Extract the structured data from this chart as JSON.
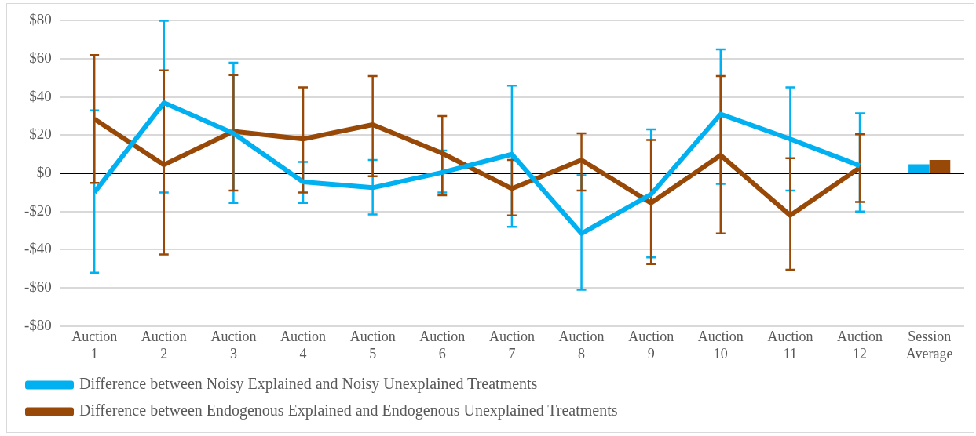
{
  "chart_data": {
    "type": "line",
    "categories": [
      "Auction 1",
      "Auction 2",
      "Auction 3",
      "Auction 4",
      "Auction 5",
      "Auction 6",
      "Auction 7",
      "Auction 8",
      "Auction 9",
      "Auction 10",
      "Auction 11",
      "Auction 12",
      "Session Average"
    ],
    "series": [
      {
        "name": "Difference between Noisy Explained and Noisy Unexplained Treatments",
        "color": "#00b0f0",
        "values": [
          -10,
          37,
          21,
          -4.5,
          -7.5,
          0.5,
          10,
          -31.5,
          -11,
          31,
          18,
          4,
          null
        ],
        "errors": [
          [
            -52,
            33
          ],
          [
            -10,
            80
          ],
          [
            -15.5,
            58
          ],
          [
            -15.5,
            6
          ],
          [
            -21.5,
            7
          ],
          [
            -10,
            12
          ],
          [
            -28,
            46
          ],
          [
            -61,
            -1
          ],
          [
            -44,
            23
          ],
          [
            -5.5,
            65
          ],
          [
            -9,
            45
          ],
          [
            -20,
            31.5
          ],
          null
        ]
      },
      {
        "name": "Difference between Endogenous Explained and Endogenous Unexplained Treatments",
        "color": "#984807",
        "values": [
          28.5,
          4.5,
          22,
          18,
          25.5,
          10.5,
          -8,
          7,
          -15.5,
          9.5,
          -22,
          3,
          null
        ],
        "errors": [
          [
            -5,
            62
          ],
          [
            -42.5,
            54
          ],
          [
            -9,
            51.5
          ],
          [
            -10,
            45
          ],
          [
            -1.5,
            51
          ],
          [
            -11.5,
            30
          ],
          [
            -22,
            7
          ],
          [
            -9,
            21
          ],
          [
            -47.5,
            17.5
          ],
          [
            -31.5,
            51
          ],
          [
            -50.5,
            8
          ],
          [
            -15,
            20.5
          ],
          null
        ]
      },
      {
        "type": "bar",
        "color": "#00b0f0",
        "values": [
          null,
          null,
          null,
          null,
          null,
          null,
          null,
          null,
          null,
          null,
          null,
          null,
          4.8
        ]
      },
      {
        "type": "bar",
        "color": "#984807",
        "values": [
          null,
          null,
          null,
          null,
          null,
          null,
          null,
          null,
          null,
          null,
          null,
          null,
          7
        ]
      }
    ],
    "ylim": [
      -80,
      80
    ],
    "yticks": [
      {
        "value": -80,
        "label": "-$80"
      },
      {
        "value": -60,
        "label": "-$60"
      },
      {
        "value": -40,
        "label": "-$40"
      },
      {
        "value": -20,
        "label": "-$20"
      },
      {
        "value": 0,
        "label": "$0"
      },
      {
        "value": 20,
        "label": "$20"
      },
      {
        "value": 40,
        "label": "$40"
      },
      {
        "value": 60,
        "label": "$60"
      },
      {
        "value": 80,
        "label": "$80"
      }
    ],
    "grid": "y",
    "legend": "bottom",
    "marker": "none"
  }
}
